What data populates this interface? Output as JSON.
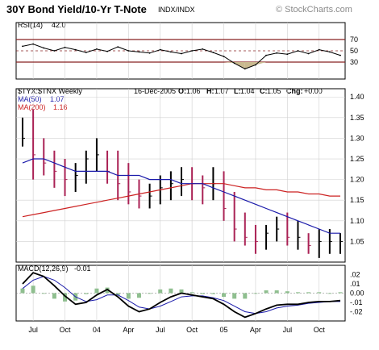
{
  "chart_data": [
    {
      "type": "line",
      "panel": "rsi",
      "label": "RSI(14)",
      "value_text": "42.0",
      "ylim": [
        0,
        100
      ],
      "reference_levels": [
        70,
        50,
        30
      ],
      "tick_labels": [
        "70",
        "50",
        "30"
      ],
      "x": [
        "2003-06",
        "2003-07",
        "2003-08",
        "2003-09",
        "2003-10",
        "2003-11",
        "2003-12",
        "2004-01",
        "2004-02",
        "2004-03",
        "2004-04",
        "2004-05",
        "2004-06",
        "2004-07",
        "2004-08",
        "2004-09",
        "2004-10",
        "2004-11",
        "2004-12",
        "2005-01",
        "2005-02",
        "2005-03",
        "2005-04",
        "2005-05",
        "2005-06",
        "2005-07",
        "2005-08",
        "2005-09",
        "2005-10",
        "2005-11",
        "2005-12"
      ],
      "values": [
        58,
        62,
        55,
        50,
        56,
        52,
        47,
        53,
        49,
        57,
        50,
        48,
        46,
        52,
        48,
        45,
        50,
        53,
        47,
        40,
        28,
        18,
        25,
        42,
        46,
        44,
        50,
        45,
        52,
        48,
        42
      ]
    },
    {
      "type": "line",
      "panel": "price",
      "title": "30Y Bond Yield/10-Yr T-Note",
      "exchange": "INDX/INDX",
      "watermark": "© StockCharts.com",
      "symbol_label": "$TYX:$TNX Weekly",
      "quote": {
        "date": "16-Dec-2005",
        "O": "1.06",
        "H": "1.07",
        "L": "1.04",
        "C": "1.05",
        "Chg": "+0.00"
      },
      "ylim": [
        1.0,
        1.42
      ],
      "y_ticks": [
        "1.40",
        "1.35",
        "1.30",
        "1.25",
        "1.20",
        "1.15",
        "1.10",
        "1.05"
      ],
      "x": [
        "2003-06",
        "2003-07",
        "2003-08",
        "2003-09",
        "2003-10",
        "2003-11",
        "2003-12",
        "2004-01",
        "2004-02",
        "2004-03",
        "2004-04",
        "2004-05",
        "2004-06",
        "2004-07",
        "2004-08",
        "2004-09",
        "2004-10",
        "2004-11",
        "2004-12",
        "2005-01",
        "2005-02",
        "2005-03",
        "2005-04",
        "2005-05",
        "2005-06",
        "2005-07",
        "2005-08",
        "2005-09",
        "2005-10",
        "2005-11",
        "2005-12"
      ],
      "series": [
        {
          "name": "$TYX:$TNX",
          "color": "#000000",
          "high": [
            1.35,
            1.37,
            1.3,
            1.27,
            1.25,
            1.24,
            1.27,
            1.3,
            1.27,
            1.27,
            1.24,
            1.2,
            1.19,
            1.21,
            1.22,
            1.23,
            1.23,
            1.21,
            1.23,
            1.22,
            1.17,
            1.12,
            1.09,
            1.09,
            1.11,
            1.12,
            1.1,
            1.07,
            1.08,
            1.08,
            1.07
          ],
          "low": [
            1.28,
            1.2,
            1.21,
            1.18,
            1.16,
            1.17,
            1.19,
            1.22,
            1.19,
            1.15,
            1.14,
            1.13,
            1.13,
            1.14,
            1.15,
            1.16,
            1.15,
            1.14,
            1.15,
            1.1,
            1.05,
            1.04,
            1.02,
            1.03,
            1.05,
            1.04,
            1.03,
            1.02,
            1.01,
            1.02,
            1.02
          ],
          "close": [
            1.3,
            1.26,
            1.24,
            1.22,
            1.2,
            1.21,
            1.25,
            1.26,
            1.22,
            1.19,
            1.17,
            1.16,
            1.16,
            1.18,
            1.19,
            1.2,
            1.19,
            1.18,
            1.19,
            1.13,
            1.08,
            1.06,
            1.05,
            1.07,
            1.08,
            1.06,
            1.06,
            1.04,
            1.05,
            1.05,
            1.05
          ]
        },
        {
          "name": "MA(50)",
          "value_text": "1.07",
          "color": "#1a1aaa",
          "values": [
            1.24,
            1.25,
            1.25,
            1.24,
            1.23,
            1.22,
            1.22,
            1.22,
            1.22,
            1.21,
            1.21,
            1.21,
            1.2,
            1.2,
            1.2,
            1.19,
            1.19,
            1.19,
            1.18,
            1.17,
            1.16,
            1.15,
            1.14,
            1.13,
            1.12,
            1.11,
            1.1,
            1.09,
            1.08,
            1.07,
            1.07
          ]
        },
        {
          "name": "MA(200)",
          "value_text": "1.16",
          "color": "#cc2222",
          "values": [
            1.11,
            1.115,
            1.12,
            1.125,
            1.13,
            1.135,
            1.14,
            1.145,
            1.15,
            1.155,
            1.16,
            1.165,
            1.17,
            1.175,
            1.18,
            1.185,
            1.19,
            1.19,
            1.19,
            1.19,
            1.185,
            1.18,
            1.18,
            1.175,
            1.175,
            1.17,
            1.17,
            1.165,
            1.165,
            1.16,
            1.16
          ]
        }
      ]
    },
    {
      "type": "line",
      "panel": "macd",
      "label": "MACD(12,26,9)",
      "value_text": "-0.01",
      "ylim": [
        -0.03,
        0.03
      ],
      "y_ticks": [
        ".02",
        ".01",
        "0.00",
        "-.01",
        "-.02"
      ],
      "x": [
        "2003-06",
        "2003-07",
        "2003-08",
        "2003-09",
        "2003-10",
        "2003-11",
        "2003-12",
        "2004-01",
        "2004-02",
        "2004-03",
        "2004-04",
        "2004-05",
        "2004-06",
        "2004-07",
        "2004-08",
        "2004-09",
        "2004-10",
        "2004-11",
        "2004-12",
        "2005-01",
        "2005-02",
        "2005-03",
        "2005-04",
        "2005-05",
        "2005-06",
        "2005-07",
        "2005-08",
        "2005-09",
        "2005-10",
        "2005-11",
        "2005-12"
      ],
      "series": [
        {
          "name": "MACD",
          "color": "#000000",
          "values": [
            0.01,
            0.022,
            0.018,
            0.008,
            -0.003,
            -0.012,
            -0.01,
            -0.002,
            0.004,
            -0.004,
            -0.014,
            -0.02,
            -0.017,
            -0.01,
            -0.004,
            0.0,
            -0.002,
            -0.004,
            -0.006,
            -0.012,
            -0.02,
            -0.026,
            -0.022,
            -0.017,
            -0.013,
            -0.012,
            -0.012,
            -0.01,
            -0.009,
            -0.009,
            -0.008
          ]
        },
        {
          "name": "Signal",
          "color": "#1a1aaa",
          "values": [
            0.005,
            0.014,
            0.018,
            0.014,
            0.006,
            -0.004,
            -0.009,
            -0.007,
            -0.002,
            -0.002,
            -0.008,
            -0.015,
            -0.017,
            -0.014,
            -0.009,
            -0.004,
            -0.003,
            -0.003,
            -0.005,
            -0.008,
            -0.014,
            -0.02,
            -0.022,
            -0.02,
            -0.016,
            -0.014,
            -0.013,
            -0.011,
            -0.01,
            -0.009,
            -0.009
          ]
        },
        {
          "name": "Histogram",
          "color": "#8fbf8f",
          "values": [
            0.005,
            0.008,
            0.0,
            -0.006,
            -0.009,
            -0.008,
            -0.001,
            0.005,
            0.006,
            -0.002,
            -0.006,
            -0.005,
            0.0,
            0.004,
            0.005,
            0.004,
            0.001,
            -0.001,
            -0.001,
            -0.004,
            -0.006,
            -0.006,
            0.0,
            0.003,
            0.003,
            0.002,
            0.001,
            0.001,
            0.001,
            0.0,
            0.001
          ]
        }
      ]
    }
  ],
  "x_axis_labels": [
    "Jul",
    "Oct",
    "04",
    "Apr",
    "Jul",
    "Oct",
    "05",
    "Apr",
    "Jul",
    "Oct"
  ],
  "x_axis_dates": [
    "2003-07",
    "2003-10",
    "2004-01",
    "2004-04",
    "2004-07",
    "2004-10",
    "2005-01",
    "2005-04",
    "2005-07",
    "2005-10"
  ],
  "colors": {
    "price_up": "#000000",
    "price_down": "#aa2255",
    "ma50": "#1a1aaa",
    "ma200": "#cc2222",
    "rsi_fill": "#c9b98f",
    "grid": "#d0d0d0",
    "ref_line": "#882222"
  }
}
